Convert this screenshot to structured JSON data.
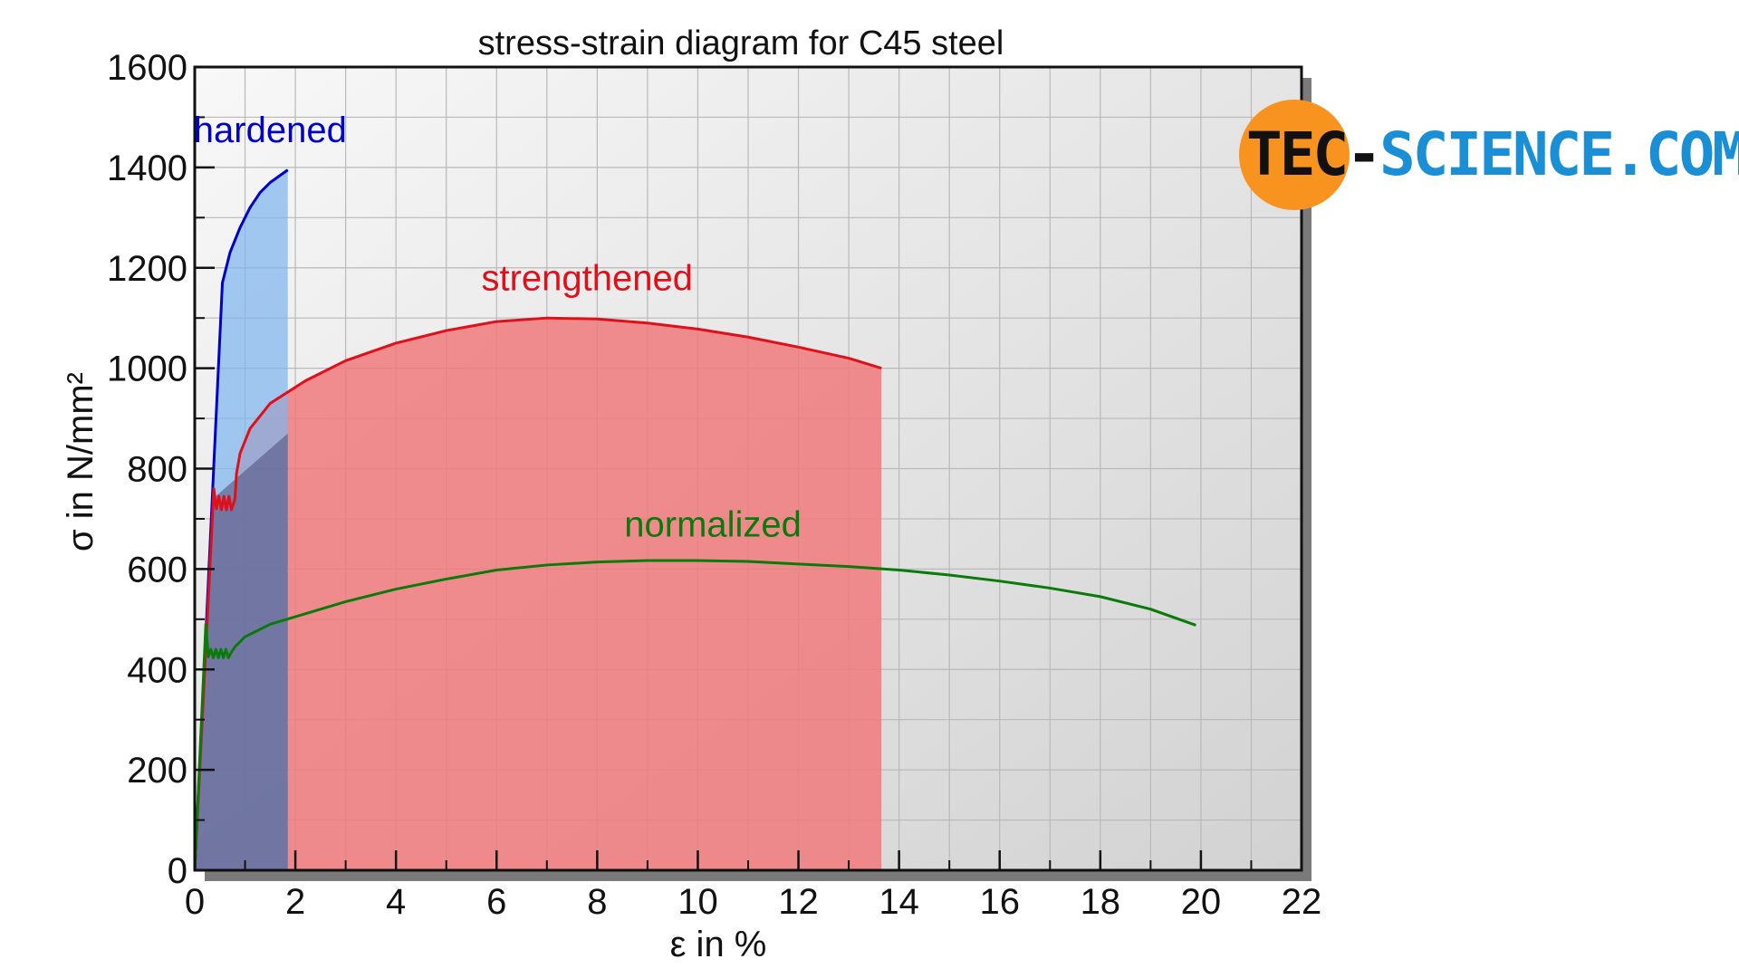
{
  "chart_data": {
    "type": "line",
    "title": "stress-strain diagram for C45 steel",
    "xlabel": "ε in %",
    "ylabel": "σ in N/mm²",
    "xlim": [
      0,
      22
    ],
    "ylim": [
      0,
      1600
    ],
    "x_ticks": [
      0,
      2,
      4,
      6,
      8,
      10,
      12,
      14,
      16,
      18,
      20,
      22
    ],
    "y_ticks": [
      0,
      200,
      400,
      600,
      800,
      1000,
      1200,
      1400,
      1600
    ],
    "grid": true,
    "series": [
      {
        "name": "hardened",
        "color": "#0000cc",
        "fill": "#7fb6ef",
        "points": [
          [
            0,
            0
          ],
          [
            0.55,
            1170
          ],
          [
            0.7,
            1230
          ],
          [
            0.9,
            1280
          ],
          [
            1.1,
            1320
          ],
          [
            1.3,
            1350
          ],
          [
            1.5,
            1370
          ],
          [
            1.85,
            1395
          ]
        ]
      },
      {
        "name": "strengthened",
        "color": "#e0101a",
        "fill": "#f07a7d",
        "points": [
          [
            0,
            0
          ],
          [
            0.38,
            760
          ],
          [
            0.43,
            720
          ],
          [
            0.48,
            745
          ],
          [
            0.53,
            718
          ],
          [
            0.58,
            745
          ],
          [
            0.63,
            718
          ],
          [
            0.68,
            745
          ],
          [
            0.73,
            718
          ],
          [
            0.8,
            740
          ],
          [
            0.83,
            790
          ],
          [
            0.9,
            830
          ],
          [
            1.1,
            880
          ],
          [
            1.5,
            930
          ],
          [
            2.2,
            975
          ],
          [
            3,
            1015
          ],
          [
            4,
            1050
          ],
          [
            5,
            1075
          ],
          [
            6,
            1093
          ],
          [
            7,
            1100
          ],
          [
            8,
            1098
          ],
          [
            9,
            1090
          ],
          [
            10,
            1078
          ],
          [
            11,
            1062
          ],
          [
            12,
            1042
          ],
          [
            13,
            1020
          ],
          [
            13.65,
            1000
          ]
        ]
      },
      {
        "name": "normalized",
        "color": "#0a7a0a",
        "fill": "none",
        "points": [
          [
            0,
            0
          ],
          [
            0.22,
            490
          ],
          [
            0.27,
            425
          ],
          [
            0.32,
            440
          ],
          [
            0.37,
            423
          ],
          [
            0.42,
            440
          ],
          [
            0.47,
            423
          ],
          [
            0.52,
            440
          ],
          [
            0.57,
            423
          ],
          [
            0.62,
            440
          ],
          [
            0.67,
            423
          ],
          [
            0.72,
            433
          ],
          [
            0.8,
            445
          ],
          [
            1,
            465
          ],
          [
            1.5,
            490
          ],
          [
            2,
            505
          ],
          [
            3,
            535
          ],
          [
            4,
            560
          ],
          [
            5,
            580
          ],
          [
            6,
            598
          ],
          [
            7,
            608
          ],
          [
            8,
            614
          ],
          [
            9,
            617
          ],
          [
            10,
            617
          ],
          [
            11,
            615
          ],
          [
            12,
            610
          ],
          [
            13,
            605
          ],
          [
            14,
            598
          ],
          [
            15,
            588
          ],
          [
            16,
            576
          ],
          [
            17,
            562
          ],
          [
            18,
            545
          ],
          [
            19,
            520
          ],
          [
            19.9,
            488
          ]
        ]
      }
    ]
  },
  "logo": {
    "text_dark": "TEC-",
    "text_blue": "SCIENCE.COM",
    "circle_color": "#f7931e"
  }
}
